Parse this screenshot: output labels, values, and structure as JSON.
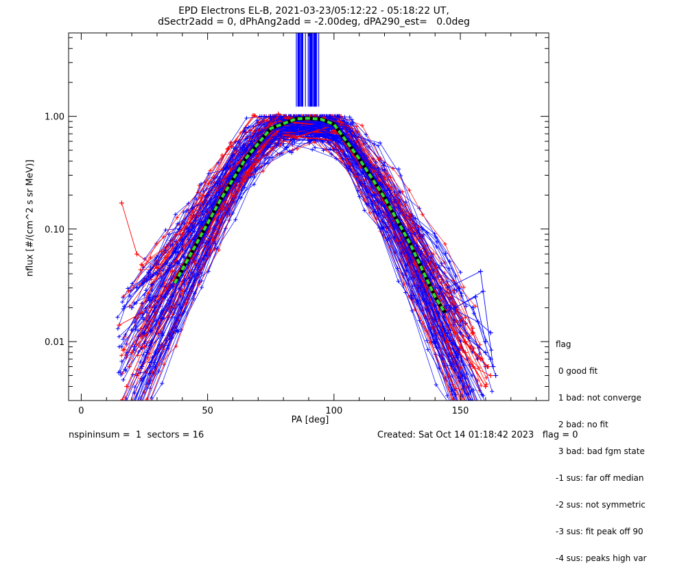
{
  "title_line1": "EPD Electrons EL-B, 2021-03-23/05:12:22 - 05:18:22 UT,",
  "title_line2": "dSectr2add = 0, dPhAng2add = -2.00deg, dPA290_est=   0.0deg",
  "footer": {
    "left": "nspininsum =  1  sectors = 16",
    "right": "Created: Sat Oct 14 01:18:42 2023   flag = 0"
  },
  "legend": {
    "title": "flag",
    "items": [
      " 0 good fit",
      " 1 bad: not converge",
      " 2 bad: no fit",
      " 3 bad: bad fgm state",
      "-1 sus: far off median",
      "-2 sus: not symmetric",
      "-3 sus: fit peak off 90",
      "-4 sus: peaks high var"
    ]
  },
  "colors": {
    "red": "#ff0000",
    "blue": "#0000ff",
    "fit": "#33dd33"
  },
  "chart_data": {
    "type": "line",
    "xlabel": "PA [deg]",
    "ylabel": "nflux [#/(cm^2 s sr MeV)]",
    "x_ticks": [
      0,
      50,
      100,
      150
    ],
    "y_ticks": [
      0.01,
      0.1,
      1.0
    ],
    "y_tick_labels": [
      "0.01",
      "0.10",
      "1.00"
    ],
    "xlim": [
      -5,
      185
    ],
    "ylim": [
      0.003,
      5.5
    ],
    "yscale": "log",
    "series": [
      {
        "color": "#00cc00",
        "style": "dashed",
        "x": [
          37,
          45,
          55,
          65,
          75,
          85,
          90,
          95,
          100,
          110,
          120,
          130,
          140,
          144
        ],
        "y": [
          0.033,
          0.07,
          0.18,
          0.42,
          0.78,
          0.95,
          0.96,
          0.94,
          0.85,
          0.42,
          0.19,
          0.075,
          0.025,
          0.018
        ]
      }
    ],
    "sample_traces": {
      "red": [
        {
          "x": [
            16,
            22,
            30,
            40,
            50,
            62,
            75,
            83,
            95,
            100,
            108,
            120,
            130,
            142,
            155,
            160
          ],
          "y": [
            0.17,
            0.06,
            0.045,
            0.09,
            0.2,
            0.38,
            0.72,
            0.9,
            0.88,
            0.75,
            0.45,
            0.2,
            0.08,
            0.03,
            0.012,
            0.006
          ]
        },
        {
          "x": [
            18,
            25,
            35,
            45,
            55,
            68,
            78,
            85,
            95,
            100,
            110,
            120,
            132,
            145,
            155,
            162
          ],
          "y": [
            0.004,
            0.009,
            0.02,
            0.05,
            0.12,
            0.35,
            1.05,
            0.95,
            0.92,
            0.8,
            0.42,
            0.18,
            0.05,
            0.01,
            0.006,
            0.005
          ]
        },
        {
          "x": [
            20,
            28,
            38,
            48,
            58,
            70,
            80,
            88,
            95,
            102,
            110,
            122,
            135,
            148,
            158
          ],
          "y": [
            0.008,
            0.02,
            0.04,
            0.1,
            0.25,
            0.5,
            0.85,
            0.7,
            0.72,
            0.7,
            0.4,
            0.15,
            0.045,
            0.012,
            0.007
          ]
        },
        {
          "x": [
            15,
            24,
            34,
            44,
            56,
            66,
            76,
            86,
            96,
            104,
            115,
            125,
            136,
            150,
            160
          ],
          "y": [
            0.014,
            0.018,
            0.03,
            0.065,
            0.15,
            0.32,
            0.7,
            0.92,
            0.98,
            0.7,
            0.3,
            0.12,
            0.04,
            0.009,
            0.004
          ]
        },
        {
          "x": [
            22,
            30,
            40,
            52,
            60,
            72,
            82,
            92,
            100,
            112,
            124,
            138,
            152,
            160
          ],
          "y": [
            0.005,
            0.012,
            0.028,
            0.08,
            0.2,
            0.55,
            0.96,
            0.9,
            0.8,
            0.35,
            0.12,
            0.03,
            0.008,
            0.004
          ]
        },
        {
          "x": [
            19,
            27,
            37,
            47,
            57,
            67,
            79,
            89,
            97,
            106,
            118,
            128,
            140,
            152,
            161
          ],
          "y": [
            0.006,
            0.015,
            0.035,
            0.09,
            0.22,
            0.45,
            0.9,
            0.97,
            0.9,
            0.6,
            0.22,
            0.09,
            0.028,
            0.01,
            0.006
          ]
        }
      ],
      "blue": [
        {
          "x": [
            22,
            30,
            40,
            50,
            60,
            70,
            80,
            88,
            96,
            102,
            112,
            122,
            132,
            145,
            158,
            163
          ],
          "y": [
            0.03,
            0.04,
            0.08,
            0.2,
            0.45,
            0.7,
            0.92,
            0.95,
            0.85,
            0.75,
            0.45,
            0.22,
            0.09,
            0.03,
            0.042,
            0.006
          ]
        },
        {
          "x": [
            18,
            26,
            36,
            46,
            56,
            66,
            78,
            85,
            95,
            100,
            110,
            120,
            130,
            140,
            150,
            160
          ],
          "y": [
            0.003,
            0.008,
            0.025,
            0.07,
            0.18,
            0.4,
            0.8,
            0.98,
            0.95,
            0.82,
            0.4,
            0.16,
            0.07,
            0.03,
            0.012,
            0.008
          ]
        },
        {
          "x": [
            25,
            33,
            42,
            52,
            62,
            72,
            82,
            90,
            98,
            104,
            114,
            126,
            138,
            150,
            162
          ],
          "y": [
            0.012,
            0.025,
            0.05,
            0.14,
            0.35,
            0.62,
            0.9,
            0.96,
            0.92,
            0.7,
            0.32,
            0.12,
            0.04,
            0.014,
            0.007
          ]
        },
        {
          "x": [
            20,
            28,
            38,
            48,
            58,
            68,
            80,
            90,
            100,
            108,
            116,
            128,
            142,
            155,
            164
          ],
          "y": [
            0.02,
            0.032,
            0.05,
            0.11,
            0.28,
            0.55,
            0.88,
            0.97,
            0.82,
            0.55,
            0.28,
            0.1,
            0.03,
            0.02,
            0.005
          ]
        },
        {
          "x": [
            24,
            32,
            41,
            50,
            61,
            71,
            81,
            91,
            99,
            107,
            119,
            131,
            144,
            156,
            160
          ],
          "y": [
            0.006,
            0.016,
            0.035,
            0.1,
            0.3,
            0.58,
            0.9,
            0.93,
            0.86,
            0.6,
            0.2,
            0.06,
            0.018,
            0.025,
            0.01
          ]
        },
        {
          "x": [
            21,
            29,
            39,
            49,
            59,
            69,
            79,
            87,
            97,
            103,
            113,
            123,
            135,
            148,
            159
          ],
          "y": [
            0.009,
            0.02,
            0.04,
            0.09,
            0.24,
            0.5,
            0.85,
            0.94,
            0.9,
            0.76,
            0.38,
            0.14,
            0.05,
            0.02,
            0.028
          ]
        },
        {
          "x": [
            26,
            34,
            44,
            54,
            64,
            74,
            84,
            94,
            101,
            111,
            121,
            133,
            146,
            157,
            162
          ],
          "y": [
            0.035,
            0.05,
            0.1,
            0.25,
            0.5,
            0.75,
            0.95,
            0.9,
            0.78,
            0.42,
            0.2,
            0.07,
            0.02,
            0.015,
            0.012
          ]
        }
      ]
    }
  }
}
